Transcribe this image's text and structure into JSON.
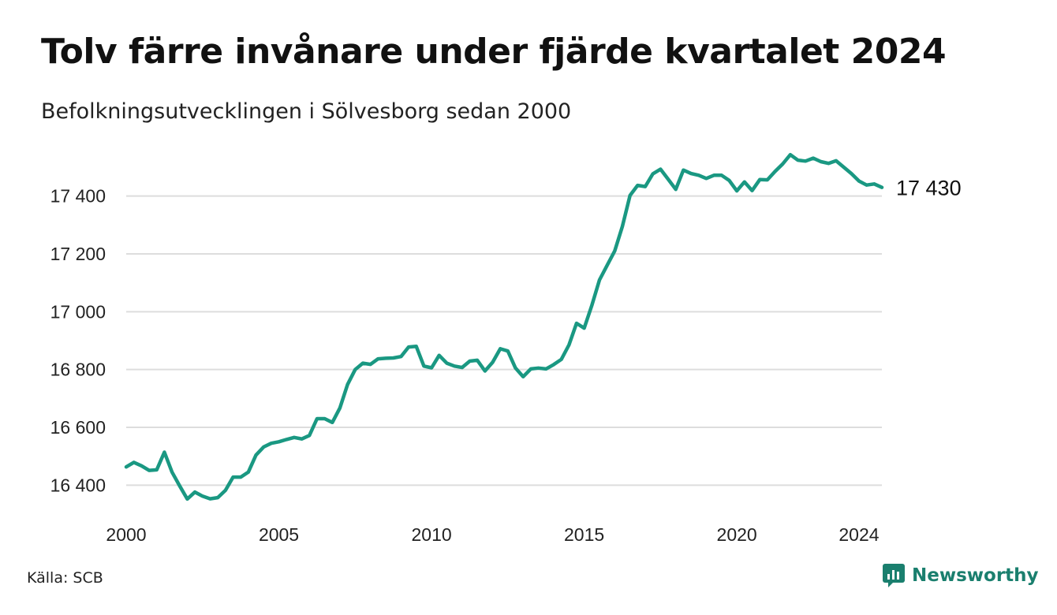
{
  "header": {
    "title": "Tolv färre invånare under fjärde kvartalet 2024",
    "subtitle": "Befolkningsutvecklingen i Sölvesborg sedan 2000"
  },
  "footer": {
    "source": "Källa: SCB",
    "brand": "Newsworthy",
    "brand_icon": "newsworthy-logo-icon"
  },
  "colors": {
    "line": "#1a9882",
    "grid": "#dddddd",
    "brand": "#1a7f6e"
  },
  "chart_data": {
    "type": "line",
    "title": "Tolv färre invånare under fjärde kvartalet 2024",
    "subtitle": "Befolkningsutvecklingen i Sölvesborg sedan 2000",
    "x_ticks": [
      2000,
      2005,
      2010,
      2015,
      2020,
      2024
    ],
    "x_tick_labels": [
      "2000",
      "2005",
      "2010",
      "2015",
      "2020",
      "2024"
    ],
    "y_ticks": [
      16400,
      16600,
      16800,
      17000,
      17200,
      17400
    ],
    "y_tick_labels": [
      "16 400",
      "16 600",
      "16 800",
      "17 000",
      "17 200",
      "17 400"
    ],
    "xlim": [
      2000,
      2024.75
    ],
    "ylim": [
      16300,
      17560
    ],
    "grid": true,
    "end_label": "17 430",
    "series": [
      {
        "x": [
          2000.0,
          2000.25,
          2000.5,
          2000.75,
          2001.0,
          2001.25,
          2001.5,
          2001.75,
          2002.0,
          2002.25,
          2002.5,
          2002.75,
          2003.0,
          2003.25,
          2003.5,
          2003.75,
          2004.0,
          2004.25,
          2004.5,
          2004.75,
          2005.0,
          2005.25,
          2005.5,
          2005.75,
          2006.0,
          2006.25,
          2006.5,
          2006.75,
          2007.0,
          2007.25,
          2007.5,
          2007.75,
          2008.0,
          2008.25,
          2008.5,
          2008.75,
          2009.0,
          2009.25,
          2009.5,
          2009.75,
          2010.0,
          2010.25,
          2010.5,
          2010.75,
          2011.0,
          2011.25,
          2011.5,
          2011.75,
          2012.0,
          2012.25,
          2012.5,
          2012.75,
          2013.0,
          2013.25,
          2013.5,
          2013.75,
          2014.0,
          2014.25,
          2014.5,
          2014.75,
          2015.0,
          2015.25,
          2015.5,
          2015.75,
          2016.0,
          2016.25,
          2016.5,
          2016.75,
          2017.0,
          2017.25,
          2017.5,
          2017.75,
          2018.0,
          2018.25,
          2018.5,
          2018.75,
          2019.0,
          2019.25,
          2019.5,
          2019.75,
          2020.0,
          2020.25,
          2020.5,
          2020.75,
          2021.0,
          2021.25,
          2021.5,
          2021.75,
          2022.0,
          2022.25,
          2022.5,
          2022.75,
          2023.0,
          2023.25,
          2023.5,
          2023.75,
          2024.0,
          2024.25,
          2024.5,
          2024.75
        ],
        "y": [
          16463,
          16479,
          16467,
          16451,
          16453,
          16514,
          16445,
          16398,
          16352,
          16376,
          16362,
          16353,
          16357,
          16382,
          16428,
          16428,
          16445,
          16504,
          16532,
          16545,
          16550,
          16558,
          16565,
          16560,
          16572,
          16630,
          16630,
          16617,
          16667,
          16748,
          16800,
          16822,
          16818,
          16837,
          16839,
          16840,
          16845,
          16878,
          16880,
          16812,
          16806,
          16849,
          16822,
          16812,
          16807,
          16829,
          16832,
          16795,
          16825,
          16872,
          16864,
          16805,
          16775,
          16802,
          16805,
          16802,
          16817,
          16835,
          16885,
          16960,
          16943,
          17022,
          17110,
          17160,
          17210,
          17295,
          17402,
          17437,
          17433,
          17477,
          17493,
          17458,
          17423,
          17490,
          17478,
          17472,
          17461,
          17472,
          17472,
          17454,
          17418,
          17449,
          17419,
          17457,
          17456,
          17485,
          17511,
          17543,
          17524,
          17521,
          17531,
          17519,
          17513,
          17522,
          17500,
          17478,
          17452,
          17438,
          17442,
          17430
        ]
      }
    ]
  }
}
